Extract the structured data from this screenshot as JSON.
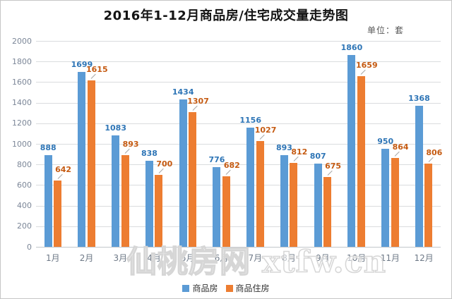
{
  "title": "2016年1-12月商品房/住宅成交量走势图",
  "unit_label": "单位：套",
  "watermark": "仙桃房网 xtfw.cn",
  "colors": {
    "series1_bar": "#5B9BD5",
    "series1_label": "#2E75B6",
    "series2_bar": "#ED7D31",
    "series2_label": "#C55A11",
    "gridline": "#dadcde",
    "axis_text": "#7c8798"
  },
  "chart_data": {
    "type": "bar",
    "title": "2016年1-12月商品房/住宅成交量走势图",
    "unit": "单位：套",
    "categories": [
      "1月",
      "2月",
      "3月",
      "4月",
      "5月",
      "6月",
      "7月",
      "8月",
      "9月",
      "10月",
      "11月",
      "12月"
    ],
    "series": [
      {
        "name": "商品房",
        "color": "#5B9BD5",
        "label_color": "#2E75B6",
        "values": [
          888,
          1699,
          1083,
          838,
          1434,
          776,
          1156,
          893,
          807,
          1860,
          950,
          1368
        ]
      },
      {
        "name": "商品住房",
        "color": "#ED7D31",
        "label_color": "#C55A11",
        "values": [
          642,
          1615,
          893,
          700,
          1307,
          682,
          1027,
          812,
          675,
          1659,
          864,
          806
        ]
      }
    ],
    "xlabel": "",
    "ylabel": "",
    "ylim": [
      0,
      2000
    ],
    "yticks": [
      0,
      200,
      400,
      600,
      800,
      1000,
      1200,
      1400,
      1600,
      1800,
      2000
    ],
    "grid": true,
    "data_labels": true,
    "legend_position": "bottom"
  }
}
